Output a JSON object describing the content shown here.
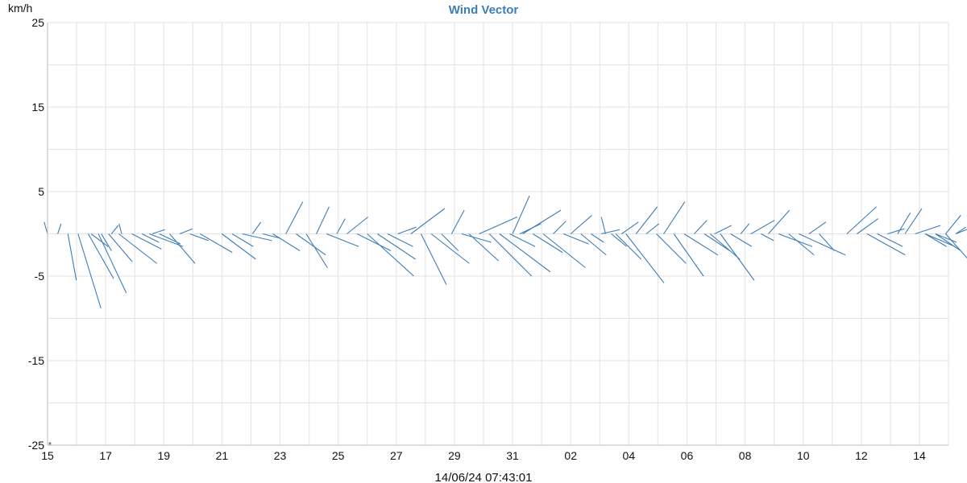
{
  "chart_data": {
    "type": "vector",
    "title": "Wind Vector",
    "ylabel": "km/h",
    "footer": "14/06/24 07:43:01",
    "corner_mark": "*",
    "ylim": [
      -25,
      25
    ],
    "yticks": [
      25,
      15,
      5,
      -5,
      -15,
      -25
    ],
    "ytick_labels": [
      "25",
      "15",
      "5",
      "-5",
      "-15",
      "-25"
    ],
    "xticks": [
      "15",
      "17",
      "19",
      "21",
      "23",
      "25",
      "27",
      "29",
      "31",
      "02",
      "04",
      "06",
      "08",
      "10",
      "12",
      "14"
    ],
    "x_range_days": [
      0,
      31
    ],
    "grid": true,
    "series_color": "#3d7db5",
    "series": [
      {
        "name": "",
        "x": 0,
        "values": [
          [
            -0.4,
            1.4
          ],
          [
            0.4,
            1.2
          ],
          [
            1.0,
            -5.5
          ],
          [
            2.7,
            -8.8
          ],
          [
            3.0,
            -5.3
          ],
          [
            3.3,
            -7.0
          ],
          [
            2.8,
            -3.3
          ],
          [
            4.5,
            -3.5
          ]
        ]
      },
      {
        "name": "",
        "x": 1.5,
        "values": [
          [
            2.0,
            -1.5
          ],
          [
            1.2,
            -2.0
          ],
          [
            0.8,
            1.0
          ],
          [
            -0.3,
            1.2
          ],
          [
            3.5,
            -1.8
          ],
          [
            2.0,
            -1.0
          ],
          [
            1.5,
            0.5
          ]
        ]
      },
      {
        "name": "",
        "x": 3.5,
        "values": [
          [
            4.0,
            -1.5
          ],
          [
            2.5,
            -1.2
          ],
          [
            3.0,
            -3.5
          ],
          [
            1.5,
            0.6
          ],
          [
            2.2,
            -0.8
          ],
          [
            3.8,
            -2.2
          ]
        ]
      },
      {
        "name": "",
        "x": 6.0,
        "values": [
          [
            4.0,
            -3.0
          ],
          [
            2.5,
            -1.5
          ],
          [
            3.5,
            -0.8
          ],
          [
            1.0,
            1.4
          ],
          [
            2.0,
            -0.5
          ],
          [
            3.2,
            -2.0
          ]
        ]
      },
      {
        "name": "",
        "x": 8.2,
        "values": [
          [
            2.0,
            3.8
          ],
          [
            3.5,
            -2.5
          ],
          [
            2.5,
            -4.0
          ],
          [
            1.5,
            3.2
          ],
          [
            3.8,
            -1.5
          ],
          [
            1.0,
            1.8
          ]
        ]
      },
      {
        "name": "",
        "x": 10.3,
        "values": [
          [
            2.5,
            2.0
          ],
          [
            4.0,
            -2.0
          ],
          [
            5.5,
            -5.0
          ],
          [
            4.5,
            -3.0
          ],
          [
            3.0,
            -1.5
          ],
          [
            2.2,
            0.8
          ]
        ]
      },
      {
        "name": "",
        "x": 12.5,
        "values": [
          [
            4.0,
            3.0
          ],
          [
            3.0,
            -6.0
          ],
          [
            4.5,
            -3.5
          ],
          [
            2.0,
            -2.0
          ],
          [
            1.5,
            2.8
          ],
          [
            3.5,
            -1.0
          ]
        ]
      },
      {
        "name": "",
        "x": 14.5,
        "values": [
          [
            3.5,
            -3.2
          ],
          [
            4.5,
            2.0
          ],
          [
            5.0,
            -5.0
          ],
          [
            6.0,
            -4.5
          ],
          [
            3.0,
            -1.5
          ],
          [
            2.5,
            1.2
          ]
        ]
      },
      {
        "name": "",
        "x": 16.0,
        "values": [
          [
            2.0,
            4.5
          ],
          [
            4.5,
            2.8
          ],
          [
            3.5,
            -2.2
          ],
          [
            5.0,
            -4.0
          ],
          [
            1.5,
            1.5
          ],
          [
            3.0,
            -1.2
          ]
        ]
      },
      {
        "name": "",
        "x": 18.0,
        "values": [
          [
            2.5,
            2.2
          ],
          [
            3.0,
            -2.5
          ],
          [
            1.5,
            -1.0
          ],
          [
            2.2,
            0.5
          ],
          [
            1.8,
            -1.5
          ],
          [
            2.0,
            1.4
          ]
        ]
      },
      {
        "name": "",
        "x": 19.2,
        "values": [
          [
            -0.5,
            2.0
          ],
          [
            3.0,
            -3.0
          ],
          [
            4.5,
            -5.8
          ],
          [
            2.5,
            3.2
          ],
          [
            1.5,
            1.2
          ],
          [
            3.5,
            -3.5
          ]
        ]
      },
      {
        "name": "",
        "x": 21.2,
        "values": [
          [
            2.5,
            3.8
          ],
          [
            3.5,
            -5.0
          ],
          [
            4.0,
            -2.5
          ],
          [
            1.5,
            1.6
          ],
          [
            3.0,
            -2.0
          ],
          [
            2.0,
            1.0
          ]
        ]
      },
      {
        "name": "",
        "x": 22.8,
        "values": [
          [
            3.5,
            -3.0
          ],
          [
            4.0,
            -5.5
          ],
          [
            2.5,
            -1.5
          ],
          [
            1.0,
            1.2
          ],
          [
            2.8,
            1.6
          ],
          [
            1.5,
            -0.8
          ]
        ]
      },
      {
        "name": "",
        "x": 24.8,
        "values": [
          [
            2.5,
            2.8
          ],
          [
            4.0,
            -1.5
          ],
          [
            3.0,
            -2.5
          ],
          [
            5.5,
            -2.5
          ],
          [
            2.0,
            1.4
          ],
          [
            1.8,
            -2.0
          ]
        ]
      },
      {
        "name": "",
        "x": 27.5,
        "values": [
          [
            3.5,
            3.2
          ],
          [
            2.5,
            1.8
          ],
          [
            4.5,
            -2.5
          ],
          [
            3.0,
            -1.5
          ],
          [
            2.0,
            0.6
          ],
          [
            1.5,
            2.5
          ]
        ]
      },
      {
        "name": "",
        "x": 29.5,
        "values": [
          [
            2.0,
            3.0
          ],
          [
            3.0,
            1.0
          ],
          [
            3.5,
            -1.5
          ],
          [
            2.5,
            -1.0
          ],
          [
            1.8,
            2.2
          ],
          [
            1.2,
            0.8
          ]
        ]
      },
      {
        "name": "",
        "x": 30.2,
        "values": [
          [
            2.5,
            -1.5
          ],
          [
            3.0,
            -2.0
          ],
          [
            4.0,
            -4.5
          ],
          [
            1.5,
            0.6
          ]
        ]
      }
    ]
  }
}
